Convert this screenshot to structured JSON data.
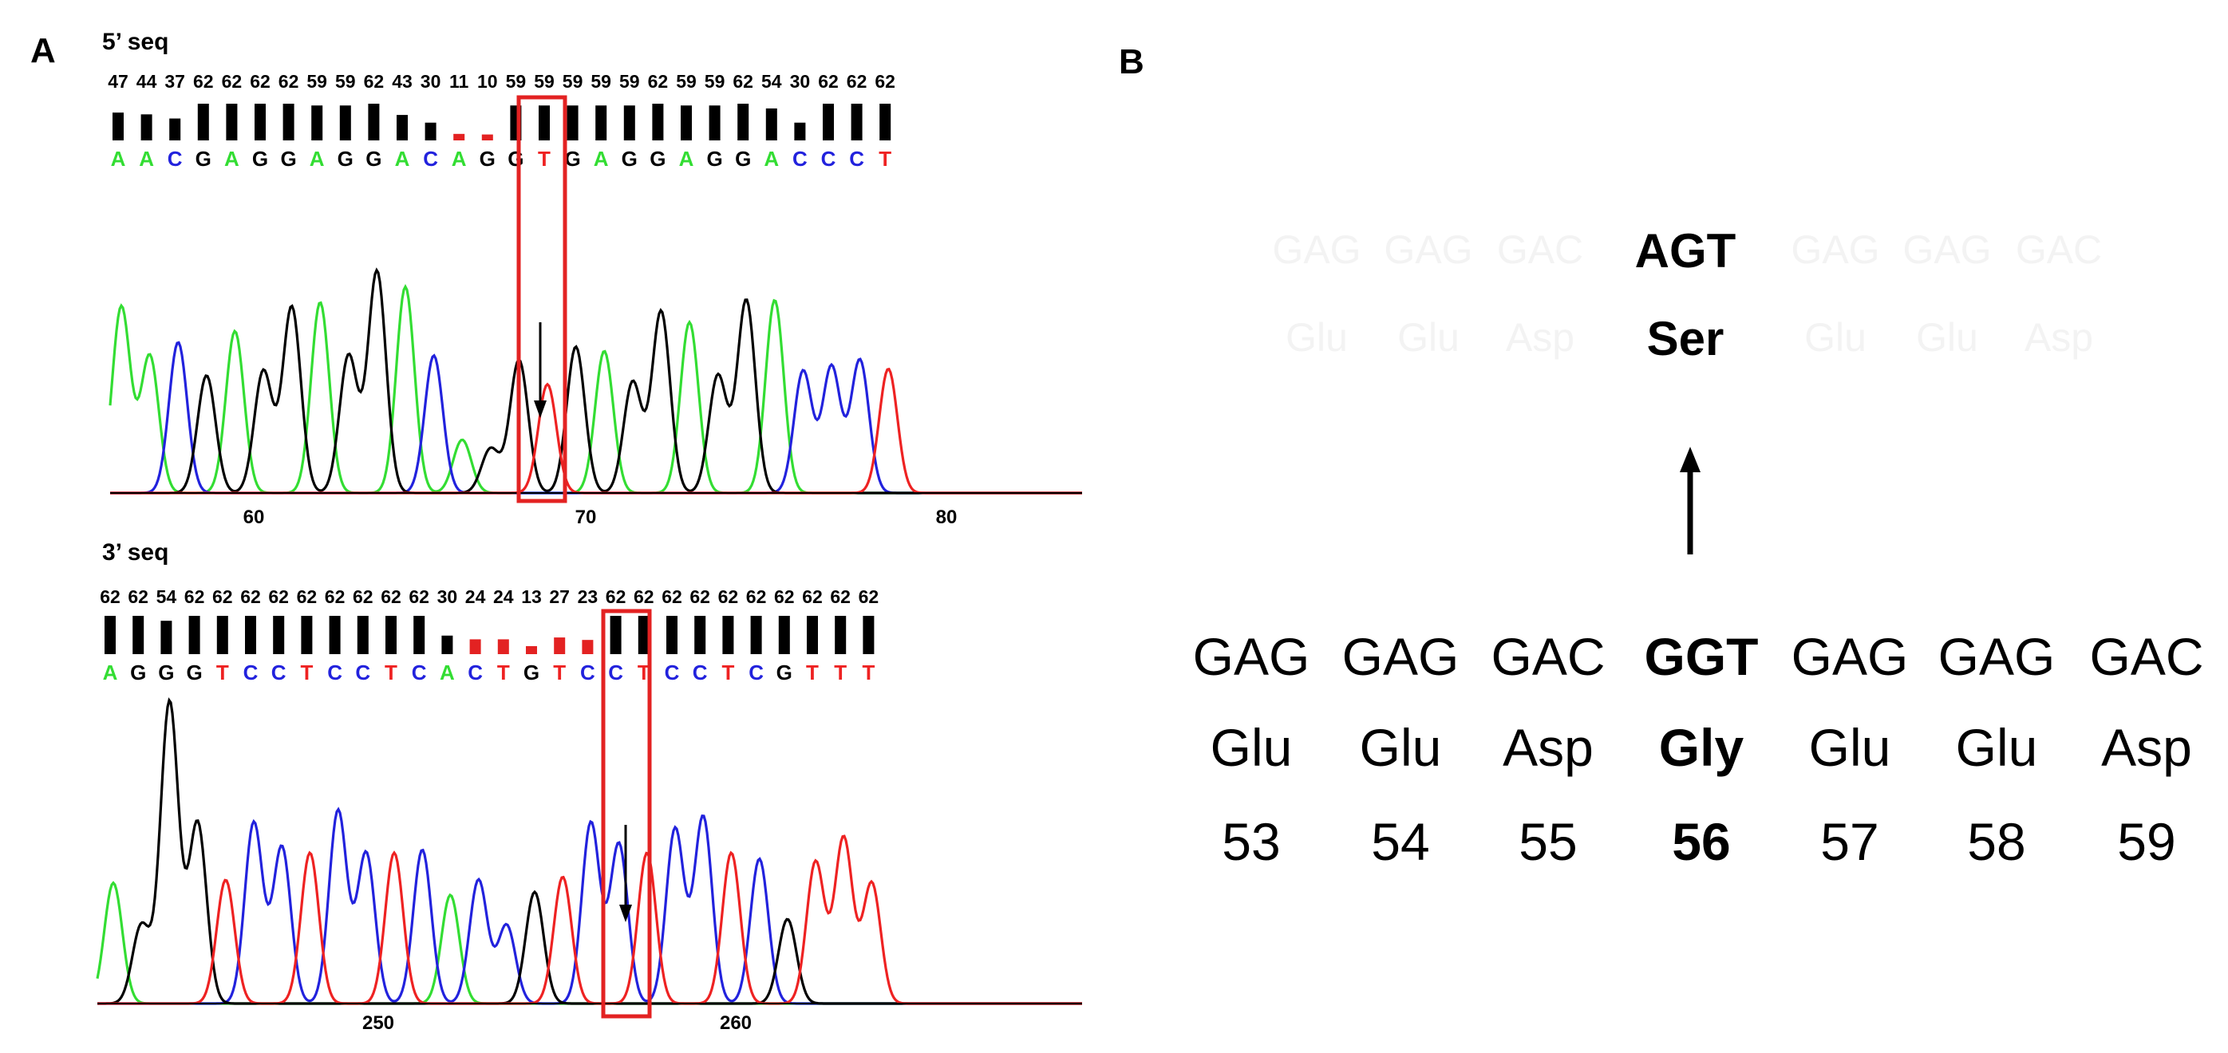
{
  "panels": {
    "a": "A",
    "b": "B"
  },
  "colors": {
    "A": "#33dd33",
    "C": "#2222dd",
    "G": "#000000",
    "T": "#ee2222",
    "N": "#ee2222",
    "highlight": "#e32222"
  },
  "traces": [
    {
      "title": "5’ seq",
      "quality": [
        "47",
        "44",
        "37",
        "62",
        "62",
        "62",
        "62",
        "59",
        "59",
        "62",
        "43",
        "30",
        "11",
        "10",
        "59",
        "59",
        "59",
        "59",
        "59",
        "62",
        "59",
        "59",
        "62",
        "54",
        "30",
        "62",
        "62",
        "62"
      ],
      "bases": [
        "A",
        "A",
        "C",
        "G",
        "A",
        "G",
        "G",
        "A",
        "G",
        "G",
        "A",
        "C",
        "A",
        "G",
        "G",
        "T",
        "G",
        "A",
        "G",
        "G",
        "A",
        "G",
        "G",
        "A",
        "C",
        "C",
        "C",
        "T"
      ],
      "bar_quality": [
        47,
        44,
        37,
        62,
        62,
        62,
        62,
        59,
        59,
        62,
        43,
        30,
        11,
        10,
        59,
        59,
        59,
        59,
        59,
        62,
        59,
        59,
        62,
        54,
        30,
        62,
        62,
        62
      ],
      "low_quality_index": [
        12,
        13
      ],
      "box_index": 12,
      "positions": [
        "60",
        "70",
        "80"
      ],
      "peaks": [
        [
          "A",
          0.84
        ],
        [
          "A",
          0.62
        ],
        [
          "C",
          0.68
        ],
        [
          "G",
          0.53
        ],
        [
          "A",
          0.73
        ],
        [
          "G",
          0.55
        ],
        [
          "G",
          0.84
        ],
        [
          "A",
          0.86
        ],
        [
          "G",
          0.62
        ],
        [
          "G",
          1.0
        ],
        [
          "A",
          0.93
        ],
        [
          "C",
          0.62
        ],
        [
          "A",
          0.24
        ],
        [
          "G",
          0.2
        ],
        [
          "G",
          0.6
        ],
        [
          "T",
          0.49
        ],
        [
          "G",
          0.66
        ],
        [
          "A",
          0.64
        ],
        [
          "G",
          0.5
        ],
        [
          "G",
          0.82
        ],
        [
          "A",
          0.77
        ],
        [
          "G",
          0.53
        ],
        [
          "G",
          0.87
        ],
        [
          "A",
          0.87
        ],
        [
          "C",
          0.55
        ],
        [
          "C",
          0.57
        ],
        [
          "C",
          0.6
        ],
        [
          "T",
          0.56
        ]
      ]
    },
    {
      "title": "3’ seq",
      "quality": [
        "62",
        "62",
        "54",
        "62",
        "62",
        "62",
        "62",
        "62",
        "62",
        "62",
        "62",
        "62",
        "30",
        "24",
        "24",
        "13",
        "27",
        "23",
        "62",
        "62",
        "62",
        "62",
        "62",
        "62",
        "62",
        "62",
        "62",
        "62"
      ],
      "bases": [
        "A",
        "G",
        "G",
        "G",
        "T",
        "C",
        "C",
        "T",
        "C",
        "C",
        "T",
        "C",
        "A",
        "C",
        "T",
        "G",
        "T",
        "C",
        "C",
        "T",
        "C",
        "C",
        "T",
        "C",
        "G",
        "T",
        "T",
        "T"
      ],
      "bar_quality": [
        62,
        62,
        54,
        62,
        62,
        62,
        62,
        62,
        62,
        62,
        62,
        62,
        30,
        24,
        24,
        13,
        27,
        23,
        62,
        62,
        62,
        62,
        62,
        62,
        62,
        62,
        62,
        62
      ],
      "low_quality_index": [
        13,
        14,
        15,
        16,
        17
      ],
      "box_index": 14,
      "positions": [
        "250",
        "260"
      ],
      "peaks": [
        [
          "A",
          0.4
        ],
        [
          "G",
          0.26
        ],
        [
          "G",
          1.0
        ],
        [
          "G",
          0.6
        ],
        [
          "T",
          0.41
        ],
        [
          "C",
          0.6
        ],
        [
          "C",
          0.52
        ],
        [
          "T",
          0.5
        ],
        [
          "C",
          0.64
        ],
        [
          "C",
          0.5
        ],
        [
          "T",
          0.5
        ],
        [
          "C",
          0.51
        ],
        [
          "A",
          0.36
        ],
        [
          "C",
          0.41
        ],
        [
          "C",
          0.26
        ],
        [
          "G",
          0.37
        ],
        [
          "T",
          0.42
        ],
        [
          "C",
          0.6
        ],
        [
          "C",
          0.53
        ],
        [
          "T",
          0.5
        ],
        [
          "C",
          0.58
        ],
        [
          "C",
          0.62
        ],
        [
          "T",
          0.5
        ],
        [
          "C",
          0.48
        ],
        [
          "G",
          0.28
        ],
        [
          "T",
          0.47
        ],
        [
          "T",
          0.55
        ],
        [
          "T",
          0.4
        ]
      ]
    }
  ],
  "mutation": {
    "new_codon": "AGT",
    "new_aa": "Ser",
    "faint_codons": [
      "GAG",
      "GAG",
      "GAC",
      "GAG",
      "GAG",
      "GAC"
    ],
    "faint_aas": [
      "Glu",
      "Glu",
      "Asp",
      "Glu",
      "Glu",
      "Asp"
    ],
    "codons": [
      "GAG",
      "GAG",
      "GAC",
      "GGT",
      "GAG",
      "GAG",
      "GAC"
    ],
    "amino_acids": [
      "Glu",
      "Glu",
      "Asp",
      "Gly",
      "Glu",
      "Glu",
      "Asp"
    ],
    "numbers": [
      "53",
      "54",
      "55",
      "56",
      "57",
      "58",
      "59"
    ],
    "highlight_index": 3
  }
}
